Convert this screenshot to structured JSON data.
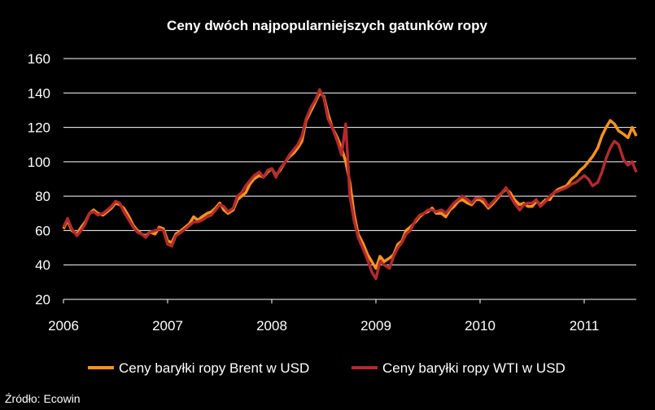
{
  "chart_data": {
    "type": "line",
    "title": "Ceny dwóch najpopularniejszych gatunków ropy",
    "xlabel": "",
    "ylabel": "",
    "ylim": [
      20,
      160
    ],
    "xlim": [
      2006,
      2011.5
    ],
    "y_ticks": [
      "20",
      "40",
      "60",
      "80",
      "100",
      "120",
      "140",
      "160"
    ],
    "x_ticks": [
      "2006",
      "2007",
      "2008",
      "2009",
      "2010",
      "2011"
    ],
    "grid": "horizontal",
    "legend_position": "bottom",
    "source": "Źródło: Ecowin",
    "series": [
      {
        "name": "Ceny baryłki ropy Brent w USD",
        "color": "#f7931e",
        "x": [
          2006.0,
          2006.04,
          2006.08,
          2006.13,
          2006.17,
          2006.21,
          2006.25,
          2006.29,
          2006.33,
          2006.38,
          2006.42,
          2006.46,
          2006.5,
          2006.54,
          2006.58,
          2006.63,
          2006.67,
          2006.71,
          2006.75,
          2006.79,
          2006.83,
          2006.88,
          2006.92,
          2006.96,
          2007.0,
          2007.04,
          2007.08,
          2007.13,
          2007.17,
          2007.21,
          2007.25,
          2007.29,
          2007.33,
          2007.38,
          2007.42,
          2007.46,
          2007.5,
          2007.54,
          2007.58,
          2007.63,
          2007.67,
          2007.71,
          2007.75,
          2007.79,
          2007.83,
          2007.88,
          2007.92,
          2007.96,
          2008.0,
          2008.04,
          2008.08,
          2008.13,
          2008.17,
          2008.21,
          2008.25,
          2008.29,
          2008.33,
          2008.38,
          2008.42,
          2008.46,
          2008.5,
          2008.54,
          2008.58,
          2008.63,
          2008.67,
          2008.71,
          2008.75,
          2008.79,
          2008.83,
          2008.88,
          2008.92,
          2008.96,
          2009.0,
          2009.04,
          2009.08,
          2009.13,
          2009.17,
          2009.21,
          2009.25,
          2009.29,
          2009.33,
          2009.38,
          2009.42,
          2009.46,
          2009.5,
          2009.54,
          2009.58,
          2009.63,
          2009.67,
          2009.71,
          2009.75,
          2009.79,
          2009.83,
          2009.88,
          2009.92,
          2009.96,
          2010.0,
          2010.04,
          2010.08,
          2010.13,
          2010.17,
          2010.21,
          2010.25,
          2010.29,
          2010.33,
          2010.38,
          2010.42,
          2010.46,
          2010.5,
          2010.54,
          2010.58,
          2010.63,
          2010.67,
          2010.71,
          2010.75,
          2010.79,
          2010.83,
          2010.88,
          2010.92,
          2010.96,
          2011.0,
          2011.04,
          2011.08,
          2011.13,
          2011.17,
          2011.21,
          2011.25,
          2011.29,
          2011.33,
          2011.38,
          2011.42,
          2011.46,
          2011.5
        ],
        "values": [
          61,
          66,
          60,
          58,
          62,
          65,
          70,
          72,
          70,
          69,
          71,
          73,
          76,
          75,
          73,
          68,
          63,
          60,
          58,
          57,
          59,
          58,
          62,
          61,
          54,
          53,
          58,
          60,
          62,
          64,
          68,
          66,
          68,
          70,
          71,
          73,
          76,
          72,
          70,
          72,
          78,
          80,
          82,
          87,
          90,
          92,
          91,
          94,
          96,
          92,
          95,
          100,
          103,
          105,
          108,
          112,
          124,
          130,
          135,
          140,
          138,
          128,
          120,
          114,
          108,
          100,
          88,
          70,
          58,
          52,
          46,
          42,
          38,
          45,
          42,
          44,
          46,
          52,
          54,
          60,
          62,
          65,
          68,
          70,
          71,
          73,
          70,
          70,
          68,
          72,
          74,
          77,
          78,
          76,
          75,
          78,
          78,
          76,
          73,
          76,
          79,
          82,
          84,
          82,
          78,
          75,
          76,
          74,
          74,
          77,
          75,
          78,
          78,
          82,
          84,
          85,
          86,
          90,
          92,
          95,
          97,
          100,
          103,
          108,
          115,
          120,
          124,
          122,
          118,
          116,
          114,
          120,
          115
        ]
      },
      {
        "name": "Ceny baryłki ropy WTI w USD",
        "color": "#b22a2e",
        "x": [
          2006.0,
          2006.04,
          2006.08,
          2006.13,
          2006.17,
          2006.21,
          2006.25,
          2006.29,
          2006.33,
          2006.38,
          2006.42,
          2006.46,
          2006.5,
          2006.54,
          2006.58,
          2006.63,
          2006.67,
          2006.71,
          2006.75,
          2006.79,
          2006.83,
          2006.88,
          2006.92,
          2006.96,
          2007.0,
          2007.04,
          2007.08,
          2007.13,
          2007.17,
          2007.21,
          2007.25,
          2007.29,
          2007.33,
          2007.38,
          2007.42,
          2007.46,
          2007.5,
          2007.54,
          2007.58,
          2007.63,
          2007.67,
          2007.71,
          2007.75,
          2007.79,
          2007.83,
          2007.88,
          2007.92,
          2007.96,
          2008.0,
          2008.04,
          2008.08,
          2008.13,
          2008.17,
          2008.21,
          2008.25,
          2008.29,
          2008.33,
          2008.38,
          2008.42,
          2008.46,
          2008.5,
          2008.54,
          2008.58,
          2008.63,
          2008.67,
          2008.71,
          2008.75,
          2008.79,
          2008.83,
          2008.88,
          2008.92,
          2008.96,
          2009.0,
          2009.04,
          2009.08,
          2009.13,
          2009.17,
          2009.21,
          2009.25,
          2009.29,
          2009.33,
          2009.38,
          2009.42,
          2009.46,
          2009.5,
          2009.54,
          2009.58,
          2009.63,
          2009.67,
          2009.71,
          2009.75,
          2009.79,
          2009.83,
          2009.88,
          2009.92,
          2009.96,
          2010.0,
          2010.04,
          2010.08,
          2010.13,
          2010.17,
          2010.21,
          2010.25,
          2010.29,
          2010.33,
          2010.38,
          2010.42,
          2010.46,
          2010.5,
          2010.54,
          2010.58,
          2010.63,
          2010.67,
          2010.71,
          2010.75,
          2010.79,
          2010.83,
          2010.88,
          2010.92,
          2010.96,
          2011.0,
          2011.04,
          2011.08,
          2011.13,
          2011.17,
          2011.21,
          2011.25,
          2011.29,
          2011.33,
          2011.38,
          2011.42,
          2011.46,
          2011.5
        ],
        "values": [
          62,
          67,
          61,
          57,
          60,
          64,
          70,
          71,
          69,
          70,
          72,
          74,
          77,
          76,
          71,
          66,
          62,
          59,
          58,
          56,
          59,
          60,
          61,
          60,
          52,
          51,
          57,
          59,
          61,
          63,
          65,
          65,
          66,
          68,
          69,
          72,
          75,
          74,
          71,
          73,
          80,
          82,
          86,
          89,
          92,
          94,
          91,
          95,
          96,
          91,
          96,
          100,
          104,
          107,
          110,
          115,
          125,
          132,
          136,
          142,
          137,
          125,
          120,
          112,
          104,
          122,
          80,
          66,
          56,
          49,
          43,
          36,
          32,
          42,
          40,
          38,
          45,
          50,
          53,
          58,
          60,
          66,
          69,
          70,
          72,
          72,
          71,
          72,
          70,
          73,
          76,
          78,
          80,
          78,
          76,
          79,
          79,
          78,
          74,
          77,
          80,
          82,
          85,
          80,
          76,
          72,
          75,
          76,
          76,
          78,
          74,
          77,
          80,
          82,
          83,
          84,
          85,
          87,
          88,
          90,
          92,
          90,
          86,
          88,
          94,
          102,
          108,
          112,
          110,
          101,
          98,
          100,
          94
        ]
      }
    ]
  }
}
